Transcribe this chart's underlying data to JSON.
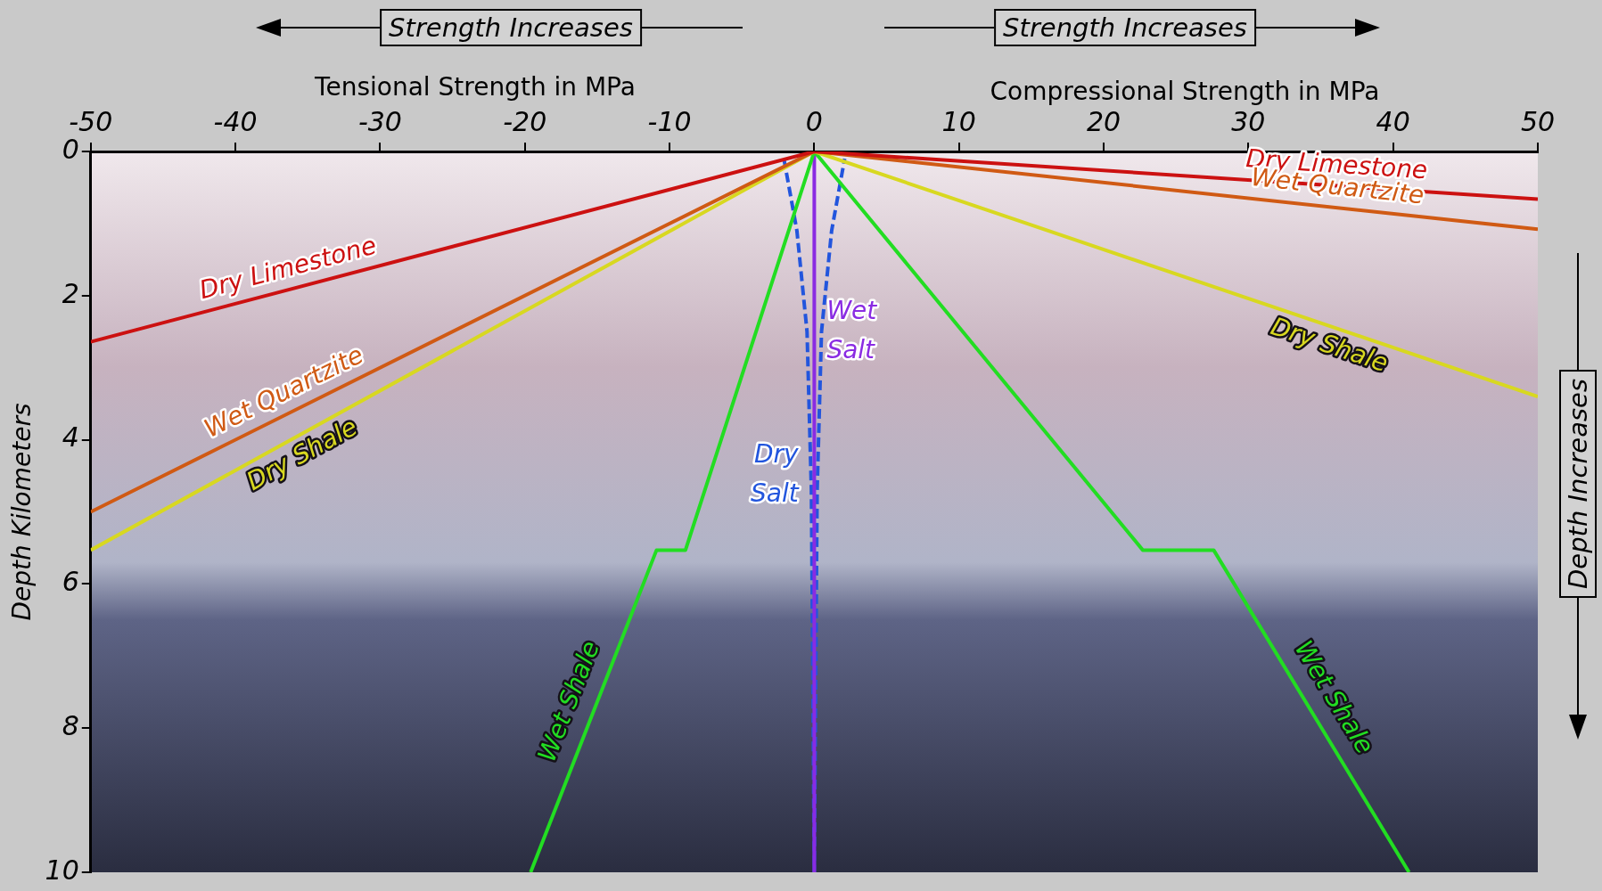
{
  "chart_data": {
    "type": "line",
    "ylabel": "Depth Kilometers",
    "annotations": [
      "Strength Increases",
      "Strength Increases",
      "Tensional Strength in MPa",
      "Compressional Strength in MPa",
      "Depth Increases"
    ],
    "xlim": [
      -50,
      50
    ],
    "xticks": [
      -50,
      -40,
      -30,
      -20,
      -10,
      0,
      10,
      20,
      30,
      40,
      50
    ],
    "ylim": [
      10,
      0
    ],
    "yticks": [
      0,
      2,
      4,
      6,
      8,
      10
    ],
    "grid": false,
    "legend": false,
    "marker": "none",
    "line_style": "solid",
    "series": [
      {
        "name": "Dry Limestone",
        "color": "#cc1111",
        "x": [
          -50,
          0,
          50
        ],
        "values": [
          2.64,
          0,
          0.66
        ]
      },
      {
        "name": "Wet Quartzite",
        "color": "#d05a14",
        "x": [
          -50,
          0,
          50
        ],
        "values": [
          5.0,
          0,
          1.08
        ]
      },
      {
        "name": "Dry Shale",
        "color": "#d8d820",
        "x": [
          -50,
          0,
          50
        ],
        "values": [
          5.53,
          0,
          3.4
        ]
      },
      {
        "name": "Wet Shale",
        "color": "#22dd22",
        "x": [
          -19.6,
          -10.9,
          -8.9,
          0,
          22.7,
          27.6,
          41.1
        ],
        "values": [
          10,
          5.53,
          5.53,
          0,
          5.53,
          5.53,
          10
        ]
      },
      {
        "name": "Wet Salt",
        "color": "#8a2be2",
        "x": [
          0,
          0
        ],
        "values": [
          0,
          10
        ]
      },
      {
        "name": "Dry Salt",
        "color": "#2255dd",
        "line_style": "dashed",
        "x": [
          -2.1,
          -1.2,
          -0.5,
          -0.2,
          0,
          0.2,
          0.5,
          1.2,
          2.1
        ],
        "values": [
          0.1,
          1.1,
          2.5,
          4.7,
          10,
          4.7,
          2.5,
          1.1,
          0.1
        ]
      }
    ]
  }
}
